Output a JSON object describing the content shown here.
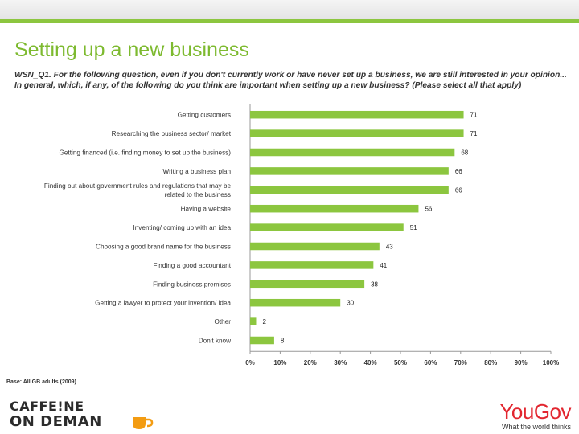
{
  "page": {
    "title": "Setting up a new business",
    "question": "WSN_Q1. For the following question, even if you don't currently work or have never set up a business, we are still interested in your opinion... In general, which, if any, of the following do you think are important when setting up a new business? (Please select all that apply)",
    "base_note": "Base: All GB adults (2009)"
  },
  "logos": {
    "left_line1": "CAFFE!NE",
    "left_line2": "ON DEMAN",
    "left_icon": "coffee-cup-icon",
    "right_name": "YouGov",
    "right_tagline": "What the world thinks"
  },
  "colors": {
    "bar": "#8cc63f",
    "accent": "#7dba2f",
    "brand_red": "#e2262f"
  },
  "chart_data": {
    "type": "bar",
    "orientation": "horizontal",
    "categories": [
      "Getting customers",
      "Researching the business sector/ market",
      "Getting financed (i.e. finding money to set up the business)",
      "Writing a business plan",
      "Finding out about government rules and regulations that may be related to the business",
      "Having a website",
      "Inventing/ coming up with an idea",
      "Choosing a good brand name for the business",
      "Finding a good accountant",
      "Finding business premises",
      "Getting a lawyer to protect your invention/ idea",
      "Other",
      "Don't know"
    ],
    "values": [
      71,
      71,
      68,
      66,
      66,
      56,
      51,
      43,
      41,
      38,
      30,
      2,
      8
    ],
    "xlim": [
      0,
      100
    ],
    "xticks": [
      "0%",
      "10%",
      "20%",
      "30%",
      "40%",
      "50%",
      "60%",
      "70%",
      "80%",
      "90%",
      "100%"
    ],
    "grid": false
  }
}
